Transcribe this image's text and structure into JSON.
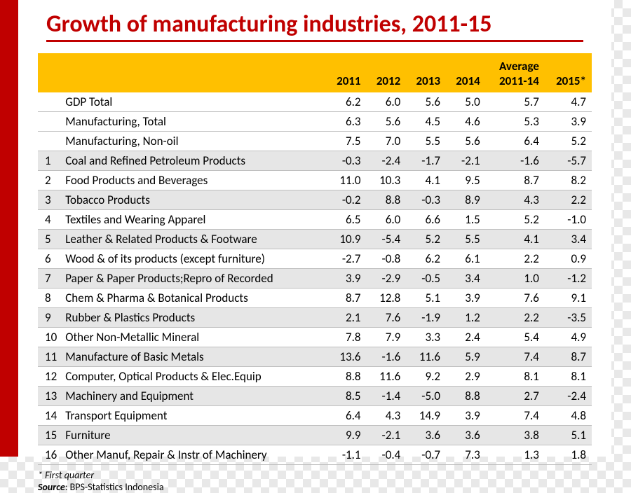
{
  "title": "Growth of manufacturing industries, 2011-15",
  "header": {
    "col_idx": "",
    "col_name": "",
    "col_2011": "2011",
    "col_2012": "2012",
    "col_2013": "2013",
    "col_2014": "2014",
    "col_avg_top": "Average",
    "col_avg": "2011-14",
    "col_2015": "2015*"
  },
  "rows": [
    {
      "idx": "",
      "name": "GDP Total",
      "y2011": "6.2",
      "y2012": "6.0",
      "y2013": "5.6",
      "y2014": "5.0",
      "avg": "5.7",
      "y2015": "4.7",
      "shade": false
    },
    {
      "idx": "",
      "name": "Manufacturing, Total",
      "y2011": "6.3",
      "y2012": "5.6",
      "y2013": "4.5",
      "y2014": "4.6",
      "avg": "5.3",
      "y2015": "3.9",
      "shade": false
    },
    {
      "idx": "",
      "name": "Manufacturing, Non-oil",
      "y2011": "7.5",
      "y2012": "7.0",
      "y2013": "5.5",
      "y2014": "5.6",
      "avg": "6.4",
      "y2015": "5.2",
      "shade": false
    },
    {
      "idx": "1",
      "name": "Coal and Refined Petroleum Products",
      "y2011": "-0.3",
      "y2012": "-2.4",
      "y2013": "-1.7",
      "y2014": "-2.1",
      "avg": "-1.6",
      "y2015": "-5.7",
      "shade": true
    },
    {
      "idx": "2",
      "name": "Food Products and Beverages",
      "y2011": "11.0",
      "y2012": "10.3",
      "y2013": "4.1",
      "y2014": "9.5",
      "avg": "8.7",
      "y2015": "8.2",
      "shade": false
    },
    {
      "idx": "3",
      "name": "Tobacco Products",
      "y2011": "-0.2",
      "y2012": "8.8",
      "y2013": "-0.3",
      "y2014": "8.9",
      "avg": "4.3",
      "y2015": "2.2",
      "shade": true
    },
    {
      "idx": "4",
      "name": "Textiles and Wearing Apparel",
      "y2011": "6.5",
      "y2012": "6.0",
      "y2013": "6.6",
      "y2014": "1.5",
      "avg": "5.2",
      "y2015": "-1.0",
      "shade": false
    },
    {
      "idx": "5",
      "name": "Leather & Related Products & Footware",
      "y2011": "10.9",
      "y2012": "-5.4",
      "y2013": "5.2",
      "y2014": "5.5",
      "avg": "4.1",
      "y2015": "3.4",
      "shade": true
    },
    {
      "idx": "6",
      "name": "Wood & of its products (except furniture)",
      "y2011": "-2.7",
      "y2012": "-0.8",
      "y2013": "6.2",
      "y2014": "6.1",
      "avg": "2.2",
      "y2015": "0.9",
      "shade": false
    },
    {
      "idx": "7",
      "name": "Paper & Paper Products;Repro of Recorded",
      "y2011": "3.9",
      "y2012": "-2.9",
      "y2013": "-0.5",
      "y2014": "3.4",
      "avg": "1.0",
      "y2015": "-1.2",
      "shade": true
    },
    {
      "idx": "8",
      "name": "Chem & Pharma & Botanical Products",
      "y2011": "8.7",
      "y2012": "12.8",
      "y2013": "5.1",
      "y2014": "3.9",
      "avg": "7.6",
      "y2015": "9.1",
      "shade": false
    },
    {
      "idx": "9",
      "name": "Rubber & Plastics Products",
      "y2011": "2.1",
      "y2012": "7.6",
      "y2013": "-1.9",
      "y2014": "1.2",
      "avg": "2.2",
      "y2015": "-3.5",
      "shade": true
    },
    {
      "idx": "10",
      "name": "Other Non-Metallic Mineral",
      "y2011": "7.8",
      "y2012": "7.9",
      "y2013": "3.3",
      "y2014": "2.4",
      "avg": "5.4",
      "y2015": "4.9",
      "shade": false
    },
    {
      "idx": "11",
      "name": "Manufacture of Basic Metals",
      "y2011": "13.6",
      "y2012": "-1.6",
      "y2013": "11.6",
      "y2014": "5.9",
      "avg": "7.4",
      "y2015": "8.7",
      "shade": true
    },
    {
      "idx": "12",
      "name": "Computer, Optical Products & Elec.Equip",
      "y2011": "8.8",
      "y2012": "11.6",
      "y2013": "9.2",
      "y2014": "2.9",
      "avg": "8.1",
      "y2015": "8.1",
      "shade": false
    },
    {
      "idx": "13",
      "name": "Machinery and Equipment",
      "y2011": "8.5",
      "y2012": "-1.4",
      "y2013": "-5.0",
      "y2014": "8.8",
      "avg": "2.7",
      "y2015": "-2.4",
      "shade": true
    },
    {
      "idx": "14",
      "name": "Transport Equipment",
      "y2011": "6.4",
      "y2012": "4.3",
      "y2013": "14.9",
      "y2014": "3.9",
      "avg": "7.4",
      "y2015": "4.8",
      "shade": false
    },
    {
      "idx": "15",
      "name": "Furniture",
      "y2011": "9.9",
      "y2012": "-2.1",
      "y2013": "3.6",
      "y2014": "3.6",
      "avg": "3.8",
      "y2015": "5.1",
      "shade": true
    },
    {
      "idx": "16",
      "name": "Other Manuf, Repair & Instr of Machinery",
      "y2011": "-1.1",
      "y2012": "-0.4",
      "y2013": "-0.7",
      "y2014": "7.3",
      "avg": "1.3",
      "y2015": "1.8",
      "shade": false
    }
  ],
  "footnote1": "* First quarter",
  "source_label": "Source",
  "source_value": ": BPS-Statistics Indonesia",
  "colors": {
    "title": "#c00000",
    "header_bg": "#ffc000",
    "shade_bg": "#e6e6e6",
    "border": "#bfbfbf",
    "red_bar": "#c00000"
  },
  "font": {
    "title_size": 34,
    "body_size": 17,
    "footnote_size": 14,
    "family": "Calibri"
  },
  "col_widths": {
    "idx": 34,
    "name": 360,
    "num": 70
  }
}
